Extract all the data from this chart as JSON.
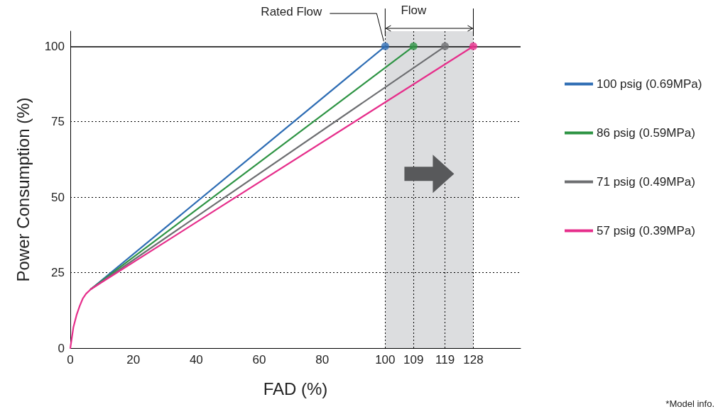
{
  "chart_data": {
    "type": "line",
    "xlabel": "FAD (%)",
    "ylabel": "Power Consumption (%)",
    "xlim": [
      0,
      143
    ],
    "ylim": [
      0,
      105
    ],
    "xticks": [
      0,
      20,
      40,
      60,
      80,
      100,
      109,
      119,
      128
    ],
    "yticks": [
      0,
      25,
      50,
      75,
      100
    ],
    "grid": false,
    "legend": "right",
    "line_style": "solid",
    "series": [
      {
        "name": "100 psig (0.69MPa)",
        "color": "#2e6db4",
        "x": [
          6.5,
          100
        ],
        "values": [
          19.5,
          100
        ]
      },
      {
        "name": "86 psig (0.59MPa)",
        "color": "#2e9444",
        "x": [
          6.5,
          109
        ],
        "values": [
          19.5,
          100
        ]
      },
      {
        "name": "71 psig (0.49MPa)",
        "color": "#6d6e71",
        "x": [
          6.5,
          119
        ],
        "values": [
          19.5,
          100
        ]
      },
      {
        "name": "57 psig (0.39MPa)",
        "color": "#e62e8b",
        "x": [
          0,
          1,
          2,
          3,
          4,
          5,
          6.5,
          128
        ],
        "values": [
          0,
          7,
          11,
          14,
          16.5,
          18,
          19.5,
          100
        ]
      },
      {
        "type": "scatter",
        "colors": [
          "#2e6db4",
          "#2e9444",
          "#6d6e71",
          "#e62e8b"
        ],
        "x": [
          100,
          109,
          119,
          128
        ],
        "values": [
          100,
          100,
          100,
          100
        ]
      }
    ],
    "ref_lines": [
      {
        "axis": "y",
        "value": 25,
        "line_style": "dotted",
        "color": "#000000"
      },
      {
        "axis": "y",
        "value": 50,
        "line_style": "dotted",
        "color": "#000000"
      },
      {
        "axis": "y",
        "value": 75,
        "line_style": "dotted",
        "color": "#000000"
      },
      {
        "axis": "y",
        "value": 100,
        "line_style": "solid",
        "color": "#000000"
      },
      {
        "axis": "x",
        "value": 100,
        "line_style": "dotted",
        "color": "#000000"
      },
      {
        "axis": "x",
        "value": 109,
        "line_style": "dotted",
        "color": "#000000"
      },
      {
        "axis": "x",
        "value": 119,
        "line_style": "dotted",
        "color": "#000000"
      },
      {
        "axis": "x",
        "value": 128,
        "line_style": "dotted",
        "color": "#000000"
      }
    ],
    "bands": [
      {
        "axis": "x",
        "from": 100,
        "to": 128,
        "label": "Flow",
        "color": "#dcdddf"
      }
    ],
    "annotations": [
      {
        "text": "Rated Flow",
        "x": 100,
        "y": 100
      },
      "*Model info."
    ]
  }
}
